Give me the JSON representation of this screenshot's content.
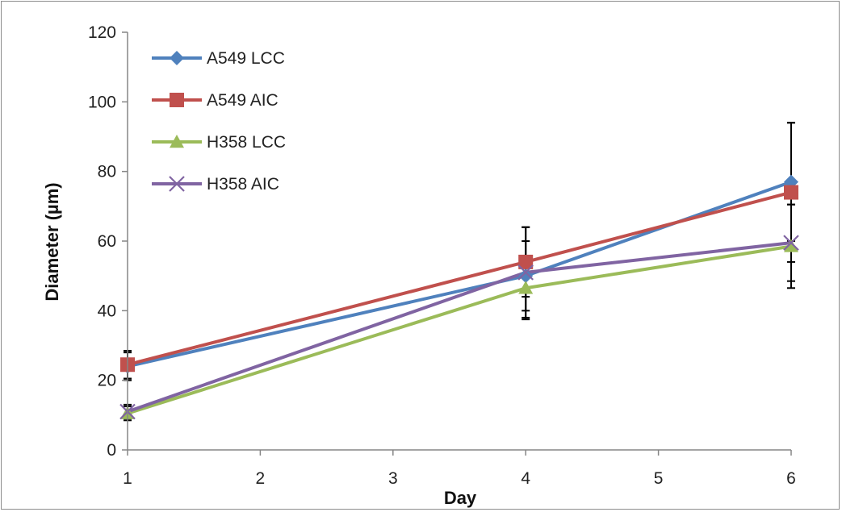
{
  "chart_data": {
    "type": "line",
    "xlabel": "Day",
    "ylabel": "Diameter (µm)",
    "x": [
      1,
      4,
      6
    ],
    "xlim": [
      1,
      6
    ],
    "xticks": [
      "1",
      "2",
      "3",
      "4",
      "5",
      "6"
    ],
    "ylim": [
      0,
      120
    ],
    "yticks": [
      "0",
      "20",
      "40",
      "60",
      "80",
      "100",
      "120"
    ],
    "grid": false,
    "legend_position": "top-left",
    "series": [
      {
        "name": "A549 LCC",
        "values": [
          24,
          50,
          77
        ],
        "error": [
          4,
          10,
          17
        ],
        "color": "#4f81bd",
        "marker": "diamond"
      },
      {
        "name": "A549 AIC",
        "values": [
          24.5,
          54,
          74
        ],
        "error": [
          4,
          10,
          20
        ],
        "color": "#c0504d",
        "marker": "square"
      },
      {
        "name": "H358 LCC",
        "values": [
          10.5,
          46.5,
          58.5
        ],
        "error": [
          2,
          9,
          12
        ],
        "color": "#9bbb59",
        "marker": "triangle"
      },
      {
        "name": "H358 AIC",
        "values": [
          11,
          51,
          59.5
        ],
        "error": [
          2,
          13,
          11
        ],
        "color": "#8064a2",
        "marker": "x"
      }
    ]
  }
}
